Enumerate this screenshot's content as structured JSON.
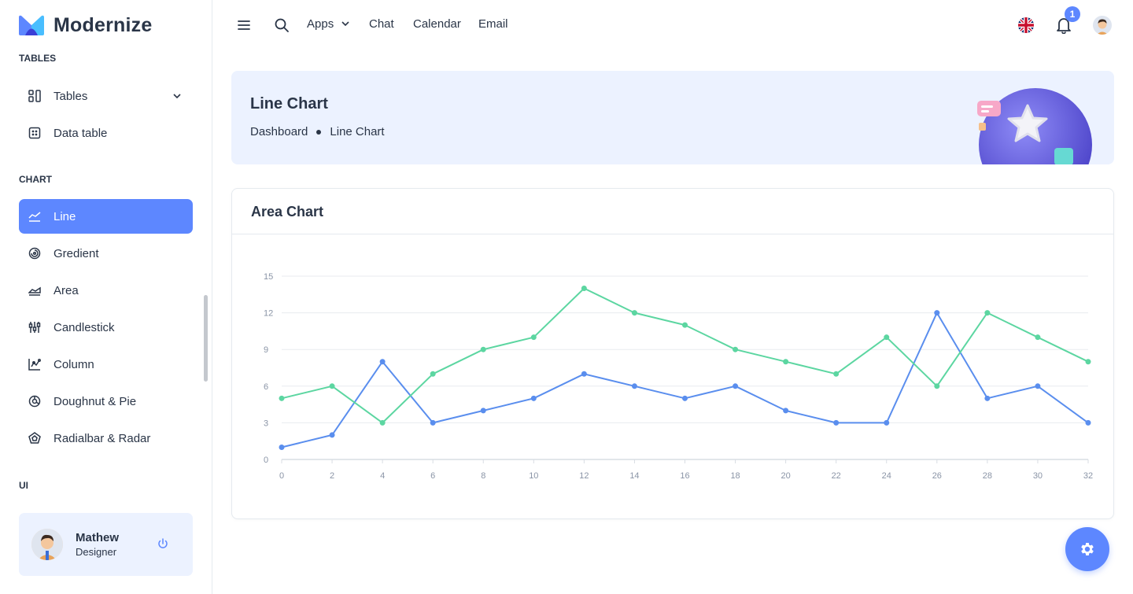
{
  "brand": {
    "name": "Modernize"
  },
  "sidebar": {
    "captions": {
      "tables": "TABLES",
      "chart": "CHART",
      "ui": "UI"
    },
    "items": [
      {
        "label": "Tables",
        "icon": "layout-grid-icon",
        "has_children": true
      },
      {
        "label": "Data table",
        "icon": "table-icon"
      },
      {
        "label": "Line",
        "icon": "chart-line-icon",
        "active": true
      },
      {
        "label": "Gredient",
        "icon": "chart-arcs-icon"
      },
      {
        "label": "Area",
        "icon": "chart-area-icon"
      },
      {
        "label": "Candlestick",
        "icon": "chart-candle-icon"
      },
      {
        "label": "Column",
        "icon": "chart-dots-icon"
      },
      {
        "label": "Doughnut & Pie",
        "icon": "chart-donut-icon"
      },
      {
        "label": "Radialbar & Radar",
        "icon": "chart-radar-icon"
      }
    ],
    "user": {
      "name": "Mathew",
      "role": "Designer"
    }
  },
  "topbar": {
    "links": [
      {
        "label": "Apps",
        "dropdown": true
      },
      {
        "label": "Chat"
      },
      {
        "label": "Calendar"
      },
      {
        "label": "Email"
      }
    ],
    "notification_count": "1"
  },
  "banner": {
    "title": "Line Chart",
    "breadcrumb": [
      "Dashboard",
      "Line Chart"
    ]
  },
  "card": {
    "title": "Area Chart"
  },
  "colors": {
    "primary": "#5d87ff",
    "series_blue": "#5a8eee",
    "series_green": "#5cd6a1",
    "banner_bg": "#ecf2ff"
  },
  "chart_data": {
    "type": "line",
    "x": [
      0,
      2,
      4,
      6,
      8,
      10,
      12,
      14,
      16,
      18,
      20,
      22,
      24,
      26,
      28,
      30,
      32
    ],
    "series": [
      {
        "color": "#5a8eee",
        "values": [
          1,
          2,
          8,
          3,
          4,
          5,
          7,
          6,
          5,
          6,
          4,
          3,
          3,
          12,
          5,
          6,
          3
        ]
      },
      {
        "color": "#5cd6a1",
        "values": [
          5,
          6,
          3,
          7,
          9,
          10,
          14,
          12,
          11,
          9,
          8,
          7,
          10,
          6,
          12,
          10,
          8
        ]
      }
    ],
    "xlim": [
      0,
      32
    ],
    "ylim": [
      0,
      15
    ],
    "yticks": [
      0,
      3,
      6,
      9,
      12,
      15
    ],
    "xticks": [
      0,
      2,
      4,
      6,
      8,
      10,
      12,
      14,
      16,
      18,
      20,
      22,
      24,
      26,
      28,
      30,
      32
    ],
    "grid": true,
    "legend": "none"
  }
}
